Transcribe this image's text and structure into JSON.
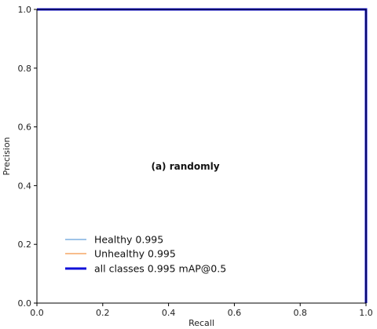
{
  "chart_data": {
    "type": "line",
    "xlabel": "Recall",
    "ylabel": "Precision",
    "xlim": [
      0.0,
      1.0
    ],
    "ylim": [
      0.0,
      1.0
    ],
    "x_ticks": [
      "0.0",
      "0.2",
      "0.4",
      "0.6",
      "0.8",
      "1.0"
    ],
    "y_ticks": [
      "0.0",
      "0.2",
      "0.4",
      "0.6",
      "0.8",
      "1.0"
    ],
    "grid": false,
    "legend_position": "lower-left",
    "annotation": "(a) randomly",
    "series": [
      {
        "name": "Healthy 0.995",
        "color": "#7fb0e0",
        "points": [
          {
            "x": 0.0,
            "y": 1.0
          },
          {
            "x": 1.0,
            "y": 1.0
          },
          {
            "x": 1.0,
            "y": 0.0
          }
        ]
      },
      {
        "name": "Unhealthy 0.995",
        "color": "#f6a766",
        "points": [
          {
            "x": 0.0,
            "y": 1.0
          },
          {
            "x": 1.0,
            "y": 1.0
          },
          {
            "x": 1.0,
            "y": 0.0
          }
        ]
      },
      {
        "name": "all classes 0.995 mAP@0.5",
        "color": "#1010d8",
        "points": [
          {
            "x": 0.0,
            "y": 1.0
          },
          {
            "x": 1.0,
            "y": 1.0
          },
          {
            "x": 1.0,
            "y": 0.0
          }
        ]
      }
    ]
  }
}
